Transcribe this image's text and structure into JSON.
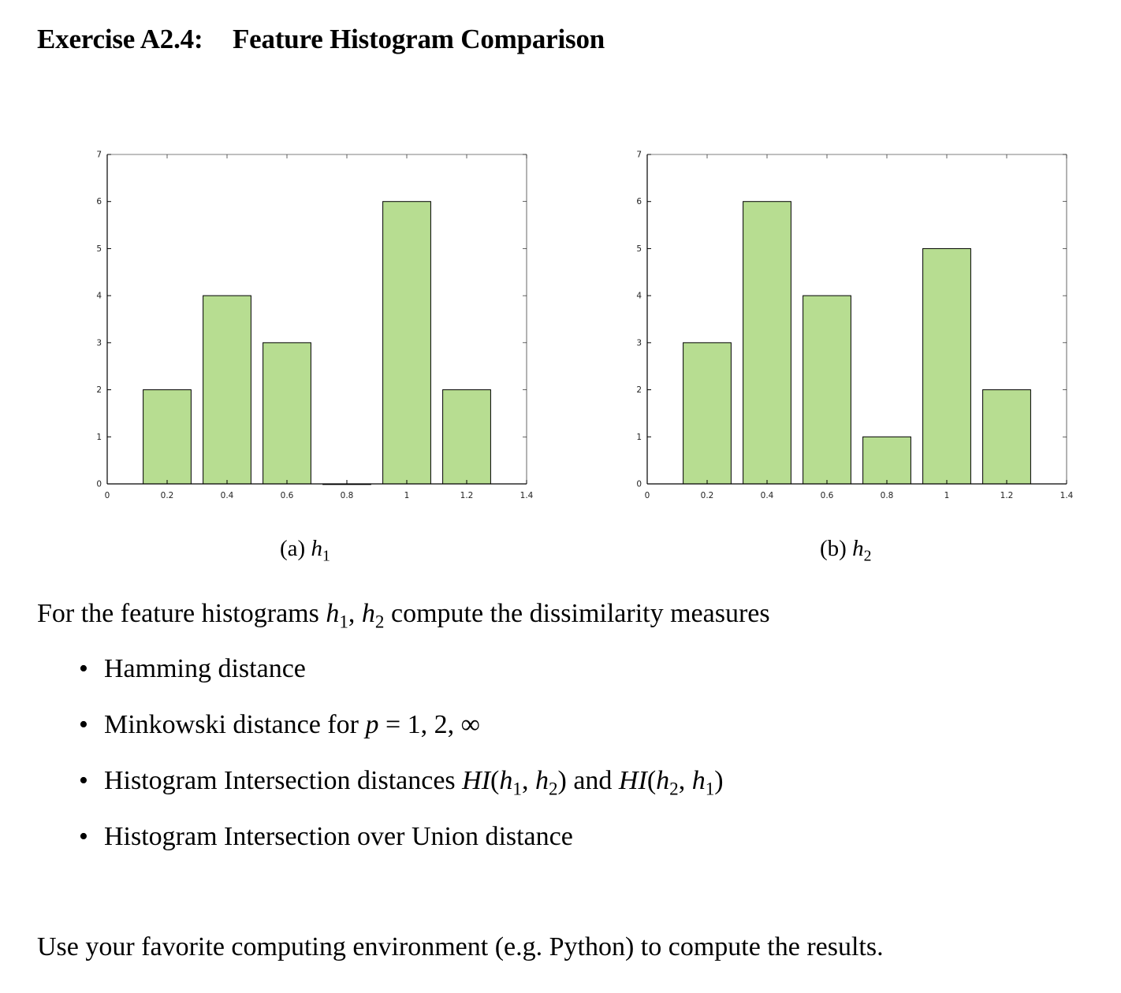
{
  "title": {
    "number": "Exercise A2.4:",
    "text": "Feature Histogram Comparison"
  },
  "colors": {
    "bar_fill": "#b7dd91",
    "bar_stroke": "#000000",
    "axis": "#000000"
  },
  "chart_data": [
    {
      "type": "bar",
      "x": [
        0.2,
        0.4,
        0.6,
        0.8,
        1.0,
        1.2
      ],
      "values": [
        2,
        4,
        3,
        0,
        6,
        2
      ],
      "xlim": [
        0,
        1.4
      ],
      "ylim": [
        0,
        7
      ],
      "xticks": [
        "0",
        "0.2",
        "0.4",
        "0.6",
        "0.8",
        "1",
        "1.2",
        "1.4"
      ],
      "yticks": [
        "0",
        "1",
        "2",
        "3",
        "4",
        "5",
        "6",
        "7"
      ],
      "bar_width": 0.16,
      "grid": false
    },
    {
      "type": "bar",
      "x": [
        0.2,
        0.4,
        0.6,
        0.8,
        1.0,
        1.2
      ],
      "values": [
        3,
        6,
        4,
        1,
        5,
        2
      ],
      "xlim": [
        0,
        1.4
      ],
      "ylim": [
        0,
        7
      ],
      "xticks": [
        "0",
        "0.2",
        "0.4",
        "0.6",
        "0.8",
        "1",
        "1.2",
        "1.4"
      ],
      "yticks": [
        "0",
        "1",
        "2",
        "3",
        "4",
        "5",
        "6",
        "7"
      ],
      "bar_width": 0.16,
      "grid": false
    }
  ],
  "captions": [
    {
      "label": "(a)",
      "var": "h",
      "sub": "1"
    },
    {
      "label": "(b)",
      "var": "h",
      "sub": "2"
    }
  ],
  "intro": {
    "before": "For the feature histograms",
    "var": "h",
    "sub1": "1",
    "sep": ",",
    "sub2": "2",
    "after": "compute the dissimilarity measures"
  },
  "tasks": {
    "bullet": "•",
    "hamming": "Hamming distance",
    "minkowski_text": "Minkowski distance for",
    "minkowski_math": "p",
    "minkowski_values": "= 1, 2, ∞",
    "hi_text": "Histogram Intersection distances",
    "hi_fn": "HI",
    "hi_and": "and",
    "iou": "Histogram Intersection over Union distance"
  },
  "outro": "Use your favorite computing environment (e.g. Python) to compute the results."
}
